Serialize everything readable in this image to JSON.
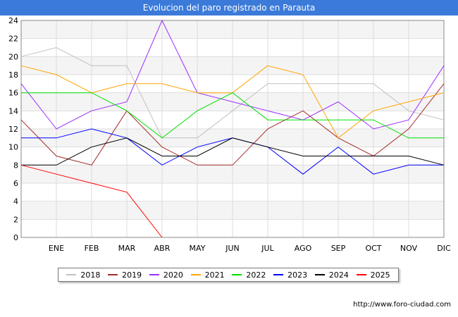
{
  "title": "Evolucion del paro registrado en Parauta",
  "footer": "http://www.foro-ciudad.com",
  "chart_data": {
    "type": "line",
    "title": "Evolucion del paro registrado en Parauta",
    "xlabel": "",
    "ylabel": "",
    "categories": [
      "",
      "ENE",
      "FEB",
      "MAR",
      "ABR",
      "MAY",
      "JUN",
      "JUL",
      "AGO",
      "SEP",
      "OCT",
      "NOV",
      "DIC"
    ],
    "ylim": [
      0,
      24
    ],
    "yticks": [
      0,
      2,
      4,
      6,
      8,
      10,
      12,
      14,
      16,
      18,
      20,
      22,
      24
    ],
    "grid": true,
    "legend_position": "bottom",
    "series": [
      {
        "name": "2018",
        "color": "#c0c0c0",
        "values": [
          20,
          21,
          19,
          19,
          11,
          11,
          14,
          17,
          17,
          17,
          17,
          14,
          13
        ]
      },
      {
        "name": "2019",
        "color": "#a52a2a",
        "values": [
          13,
          9,
          8,
          14,
          10,
          8,
          8,
          12,
          14,
          11,
          9,
          12,
          17
        ]
      },
      {
        "name": "2020",
        "color": "#9b30ff",
        "values": [
          17,
          12,
          14,
          15,
          24,
          16,
          15,
          14,
          13,
          15,
          12,
          13,
          19
        ]
      },
      {
        "name": "2021",
        "color": "#ffa500",
        "values": [
          19,
          18,
          16,
          17,
          17,
          16,
          16,
          19,
          18,
          11,
          14,
          15,
          16
        ]
      },
      {
        "name": "2022",
        "color": "#00e000",
        "values": [
          16,
          16,
          16,
          14,
          11,
          14,
          16,
          13,
          13,
          13,
          13,
          11,
          11
        ]
      },
      {
        "name": "2023",
        "color": "#0000ff",
        "values": [
          11,
          11,
          12,
          11,
          8,
          10,
          11,
          10,
          7,
          10,
          7,
          8,
          8
        ]
      },
      {
        "name": "2024",
        "color": "#000000",
        "values": [
          8,
          8,
          10,
          11,
          9,
          9,
          11,
          10,
          9,
          9,
          9,
          9,
          8
        ]
      },
      {
        "name": "2025",
        "color": "#ff0000",
        "values": [
          8,
          7,
          6,
          5,
          0,
          null,
          null,
          null,
          null,
          null,
          null,
          null,
          null
        ]
      }
    ]
  }
}
